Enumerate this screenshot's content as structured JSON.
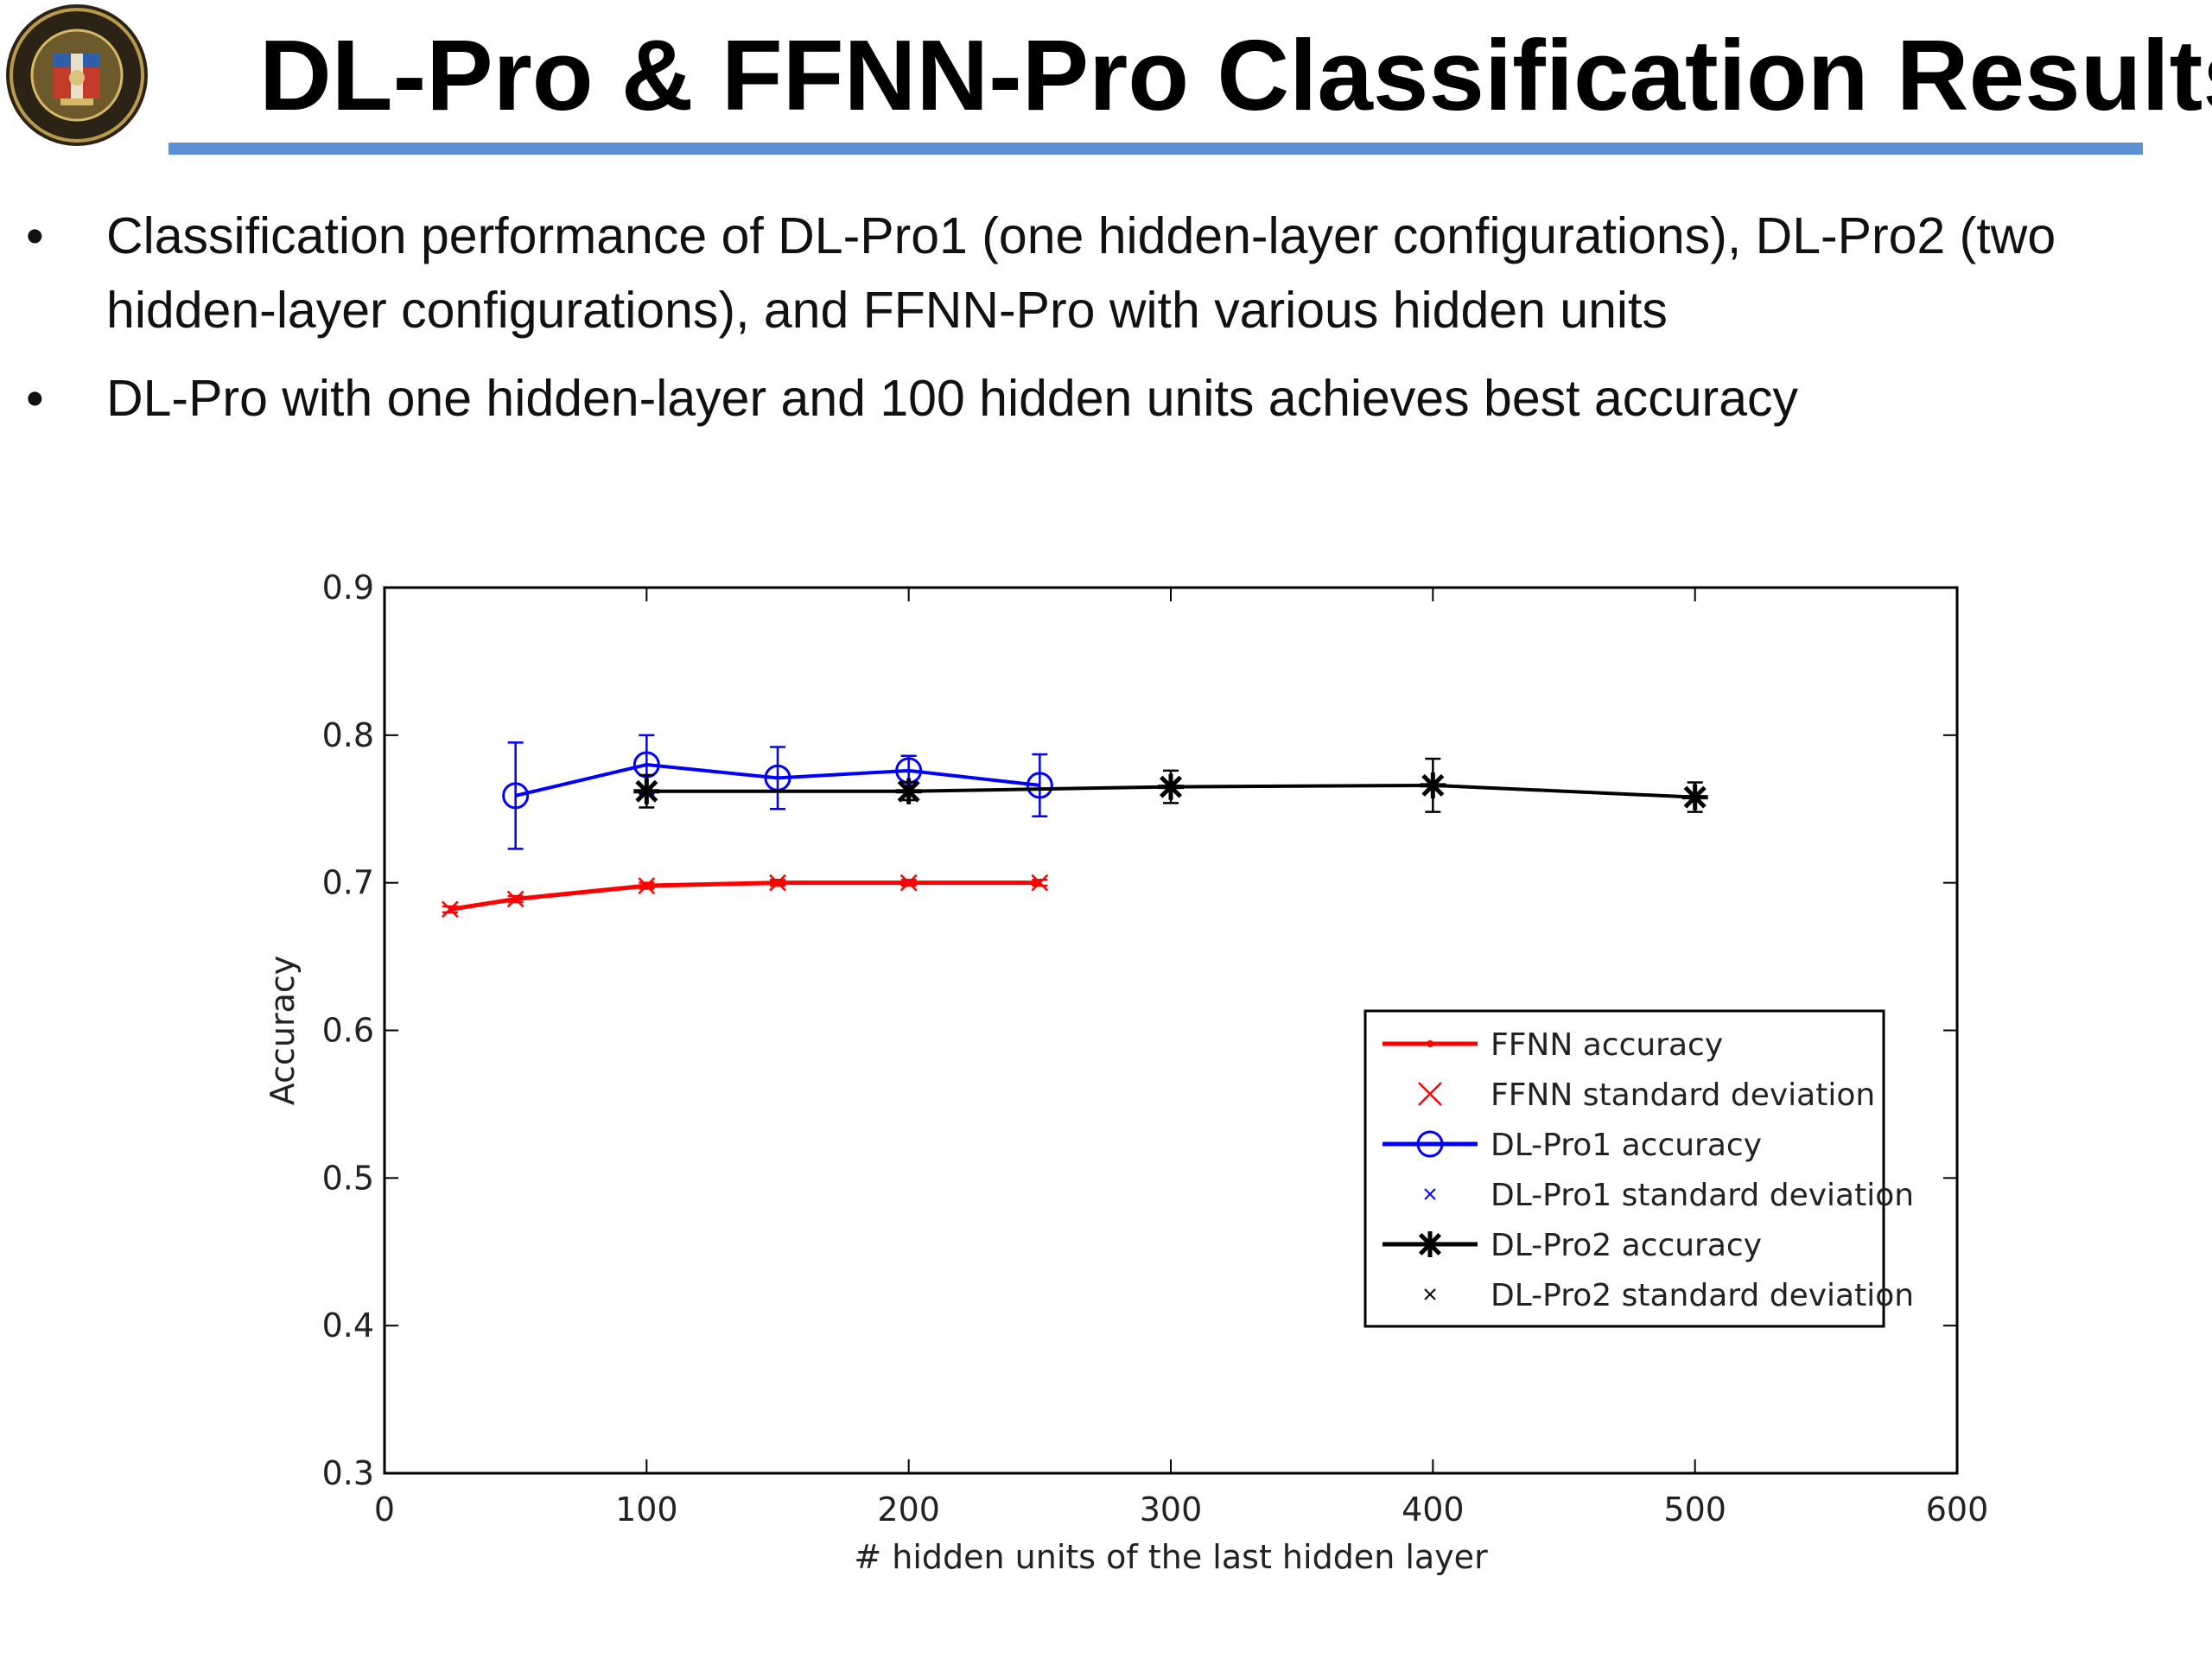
{
  "slide": {
    "title": "DL-Pro & FFNN-Pro Classification Results",
    "logo_icon": "university-seal-icon",
    "bullets": [
      "Classification performance of DL-Pro1 (one hidden-layer configurations), DL-Pro2 (two hidden-layer configurations), and FFNN-Pro with various hidden units",
      "DL-Pro with one hidden-layer and 100 hidden units achieves best accuracy"
    ]
  },
  "chart_data": {
    "type": "line",
    "title": "",
    "xlabel": "# hidden units of the last hidden layer",
    "ylabel": "Accuracy",
    "xlim": [
      0,
      600
    ],
    "ylim": [
      0.3,
      0.9
    ],
    "xticks": [
      0,
      100,
      200,
      300,
      400,
      500,
      600
    ],
    "yticks": [
      0.3,
      0.4,
      0.5,
      0.6,
      0.7,
      0.8,
      0.9
    ],
    "legend_position": "center-right",
    "series": [
      {
        "name": "FFNN accuracy",
        "std_name": "FFNN standard deviation",
        "color": "#ff0000",
        "marker": "dot",
        "x": [
          25,
          50,
          100,
          150,
          200,
          250
        ],
        "y": [
          0.682,
          0.689,
          0.698,
          0.7,
          0.7,
          0.7
        ],
        "std": [
          0.002,
          0.002,
          0.002,
          0.002,
          0.002,
          0.002
        ]
      },
      {
        "name": "DL-Pro1 accuracy",
        "std_name": "DL-Pro1 standard deviation",
        "color": "#0000ff",
        "marker": "circle",
        "x": [
          50,
          100,
          150,
          200,
          250
        ],
        "y": [
          0.759,
          0.78,
          0.771,
          0.776,
          0.766
        ],
        "std": [
          0.036,
          0.02,
          0.021,
          0.01,
          0.021
        ]
      },
      {
        "name": "DL-Pro2 accuracy",
        "std_name": "DL-Pro2 standard deviation",
        "color": "#000000",
        "marker": "asterisk",
        "x": [
          100,
          200,
          300,
          400,
          500
        ],
        "y": [
          0.762,
          0.762,
          0.765,
          0.766,
          0.758
        ],
        "std": [
          0.011,
          0.006,
          0.011,
          0.018,
          0.01
        ]
      }
    ]
  }
}
